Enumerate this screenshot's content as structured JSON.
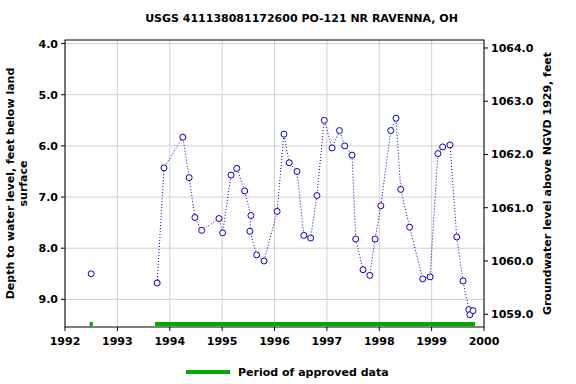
{
  "chart_data": {
    "type": "line",
    "title": "USGS 411138081172600 PO-121 NR RAVENNA, OH",
    "y_label": [
      "Depth to water level, feet below land",
      "surface"
    ],
    "y2_label": "Groundwater level above NGVD 1929, feet",
    "xlim": [
      1992,
      2000
    ],
    "xticks": [
      1992,
      1993,
      1994,
      1995,
      1996,
      1997,
      1998,
      1999,
      2000
    ],
    "ylim": [
      9.54,
      3.93
    ],
    "yticks": [
      {
        "value": 4,
        "label": "4.0"
      },
      {
        "value": 5,
        "label": "5.0"
      },
      {
        "value": 6,
        "label": "6.0"
      },
      {
        "value": 7,
        "label": "7.0"
      },
      {
        "value": 8,
        "label": "8.0"
      },
      {
        "value": 9,
        "label": "9.0"
      }
    ],
    "y2lim": [
      1058.76,
      1064.15
    ],
    "y2ticks": [
      {
        "value": 1059,
        "label": "1059.0"
      },
      {
        "value": 1060,
        "label": "1060.0"
      },
      {
        "value": 1061,
        "label": "1061.0"
      },
      {
        "value": 1062,
        "label": "1062.0"
      },
      {
        "value": 1063,
        "label": "1063.0"
      },
      {
        "value": 1064,
        "label": "1064.0"
      }
    ],
    "grid": true,
    "legend": "bottom",
    "series": [
      {
        "name": "Depth to water level",
        "type": "line",
        "color": "#0000cc",
        "marker": "circle",
        "line_style": "dotted",
        "x": [
          1992.5,
          null,
          1993.76,
          1993.89,
          1994.25,
          1994.37,
          1994.48,
          1994.61,
          1994.94,
          1995.01,
          1995.17,
          1995.28,
          1995.43,
          1995.55,
          1995.53,
          1995.66,
          1995.8,
          1996.05,
          1996.18,
          1996.28,
          1996.43,
          1996.56,
          1996.69,
          1996.81,
          1996.95,
          1997.1,
          1997.24,
          1997.34,
          1997.48,
          1997.55,
          1997.69,
          1997.82,
          1997.92,
          1998.03,
          1998.22,
          1998.32,
          1998.41,
          1998.58,
          1998.83,
          1998.97,
          1999.12,
          1999.21,
          1999.35,
          1999.48,
          1999.6,
          1999.71,
          1999.73,
          1999.79
        ],
        "values": [
          8.5,
          null,
          8.68,
          6.43,
          5.83,
          6.62,
          7.4,
          7.65,
          7.42,
          7.7,
          6.57,
          6.44,
          6.88,
          7.36,
          7.67,
          8.13,
          8.25,
          7.28,
          5.77,
          6.33,
          6.5,
          7.75,
          7.8,
          6.97,
          5.5,
          6.04,
          5.7,
          6.0,
          6.18,
          7.82,
          8.42,
          8.53,
          7.82,
          7.17,
          5.7,
          5.46,
          6.85,
          7.59,
          8.6,
          8.56,
          6.15,
          6.02,
          5.98,
          7.78,
          8.64,
          9.2,
          9.3,
          9.22
        ]
      },
      {
        "name": "Period of approved data",
        "type": "range",
        "color": "#00aa00",
        "start": [
          1992.47,
          1993.72
        ],
        "end": [
          1992.53,
          1999.83
        ]
      }
    ]
  }
}
